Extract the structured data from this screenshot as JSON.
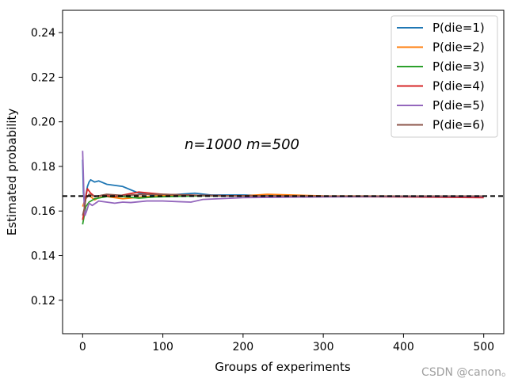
{
  "chart_data": {
    "type": "line",
    "title": "",
    "xlabel": "Groups of experiments",
    "ylabel": "Estimated probability",
    "xlim": [
      -25,
      525
    ],
    "ylim": [
      0.105,
      0.25
    ],
    "xticks": [
      0,
      100,
      200,
      300,
      400,
      500
    ],
    "yticks": [
      0.12,
      0.14,
      0.16,
      0.18,
      0.2,
      0.22,
      0.24
    ],
    "ytick_labels": [
      "0.12",
      "0.14",
      "0.16",
      "0.18",
      "0.20",
      "0.22",
      "0.24"
    ],
    "grid": false,
    "legend_placement": "top-right",
    "annotation": "n=1000   m=500",
    "reference_line": {
      "y": 0.1667,
      "style": "dashed",
      "color": "#000000"
    },
    "series": [
      {
        "name": "P(die=1)",
        "color": "#1f77b4",
        "points": [
          [
            0,
            0.183
          ],
          [
            1,
            0.168
          ],
          [
            2,
            0.165
          ],
          [
            4,
            0.167
          ],
          [
            6,
            0.171
          ],
          [
            8,
            0.173
          ],
          [
            10,
            0.174
          ],
          [
            15,
            0.173
          ],
          [
            20,
            0.1735
          ],
          [
            30,
            0.172
          ],
          [
            40,
            0.1715
          ],
          [
            50,
            0.171
          ],
          [
            60,
            0.1695
          ],
          [
            70,
            0.168
          ],
          [
            80,
            0.1675
          ],
          [
            100,
            0.167
          ],
          [
            120,
            0.1675
          ],
          [
            140,
            0.168
          ],
          [
            160,
            0.1672
          ],
          [
            200,
            0.1672
          ],
          [
            250,
            0.1668
          ],
          [
            300,
            0.1667
          ],
          [
            400,
            0.1667
          ],
          [
            500,
            0.1667
          ]
        ]
      },
      {
        "name": "P(die=2)",
        "color": "#ff7f0e",
        "points": [
          [
            0,
            0.162
          ],
          [
            2,
            0.164
          ],
          [
            4,
            0.166
          ],
          [
            8,
            0.167
          ],
          [
            15,
            0.165
          ],
          [
            20,
            0.166
          ],
          [
            30,
            0.1665
          ],
          [
            50,
            0.1655
          ],
          [
            80,
            0.1665
          ],
          [
            100,
            0.167
          ],
          [
            150,
            0.1668
          ],
          [
            200,
            0.1668
          ],
          [
            230,
            0.1675
          ],
          [
            300,
            0.1668
          ],
          [
            400,
            0.1667
          ],
          [
            500,
            0.1667
          ]
        ]
      },
      {
        "name": "P(die=3)",
        "color": "#2ca02c",
        "points": [
          [
            0,
            0.154
          ],
          [
            2,
            0.158
          ],
          [
            4,
            0.162
          ],
          [
            8,
            0.164
          ],
          [
            15,
            0.1655
          ],
          [
            30,
            0.1665
          ],
          [
            50,
            0.1665
          ],
          [
            70,
            0.1658
          ],
          [
            90,
            0.1663
          ],
          [
            110,
            0.1665
          ],
          [
            150,
            0.1668
          ],
          [
            200,
            0.1667
          ],
          [
            300,
            0.1667
          ],
          [
            400,
            0.1667
          ],
          [
            500,
            0.1667
          ]
        ]
      },
      {
        "name": "P(die=4)",
        "color": "#d62728",
        "points": [
          [
            0,
            0.156
          ],
          [
            2,
            0.16
          ],
          [
            4,
            0.1665
          ],
          [
            6,
            0.17
          ],
          [
            10,
            0.168
          ],
          [
            15,
            0.1665
          ],
          [
            25,
            0.167
          ],
          [
            40,
            0.1665
          ],
          [
            55,
            0.1675
          ],
          [
            70,
            0.1685
          ],
          [
            85,
            0.168
          ],
          [
            100,
            0.1675
          ],
          [
            150,
            0.167
          ],
          [
            200,
            0.1668
          ],
          [
            300,
            0.1665
          ],
          [
            400,
            0.1663
          ],
          [
            500,
            0.166
          ]
        ]
      },
      {
        "name": "P(die=5)",
        "color": "#9467bd",
        "points": [
          [
            0,
            0.187
          ],
          [
            1,
            0.175
          ],
          [
            2,
            0.162
          ],
          [
            3,
            0.158
          ],
          [
            5,
            0.16
          ],
          [
            8,
            0.1635
          ],
          [
            12,
            0.1625
          ],
          [
            20,
            0.1645
          ],
          [
            30,
            0.164
          ],
          [
            40,
            0.1635
          ],
          [
            50,
            0.164
          ],
          [
            60,
            0.1638
          ],
          [
            80,
            0.1645
          ],
          [
            100,
            0.1645
          ],
          [
            120,
            0.1642
          ],
          [
            135,
            0.164
          ],
          [
            150,
            0.1652
          ],
          [
            200,
            0.166
          ],
          [
            250,
            0.1662
          ],
          [
            300,
            0.1663
          ],
          [
            400,
            0.1665
          ],
          [
            500,
            0.1665
          ]
        ]
      },
      {
        "name": "P(die=6)",
        "color": "#8c564b",
        "points": [
          [
            0,
            0.158
          ],
          [
            2,
            0.161
          ],
          [
            4,
            0.1655
          ],
          [
            8,
            0.1675
          ],
          [
            15,
            0.1665
          ],
          [
            30,
            0.1675
          ],
          [
            50,
            0.167
          ],
          [
            80,
            0.1675
          ],
          [
            100,
            0.1675
          ],
          [
            150,
            0.167
          ],
          [
            200,
            0.1668
          ],
          [
            300,
            0.1667
          ],
          [
            400,
            0.1667
          ],
          [
            500,
            0.1667
          ]
        ]
      }
    ]
  },
  "watermark": "CSDN @canon。"
}
